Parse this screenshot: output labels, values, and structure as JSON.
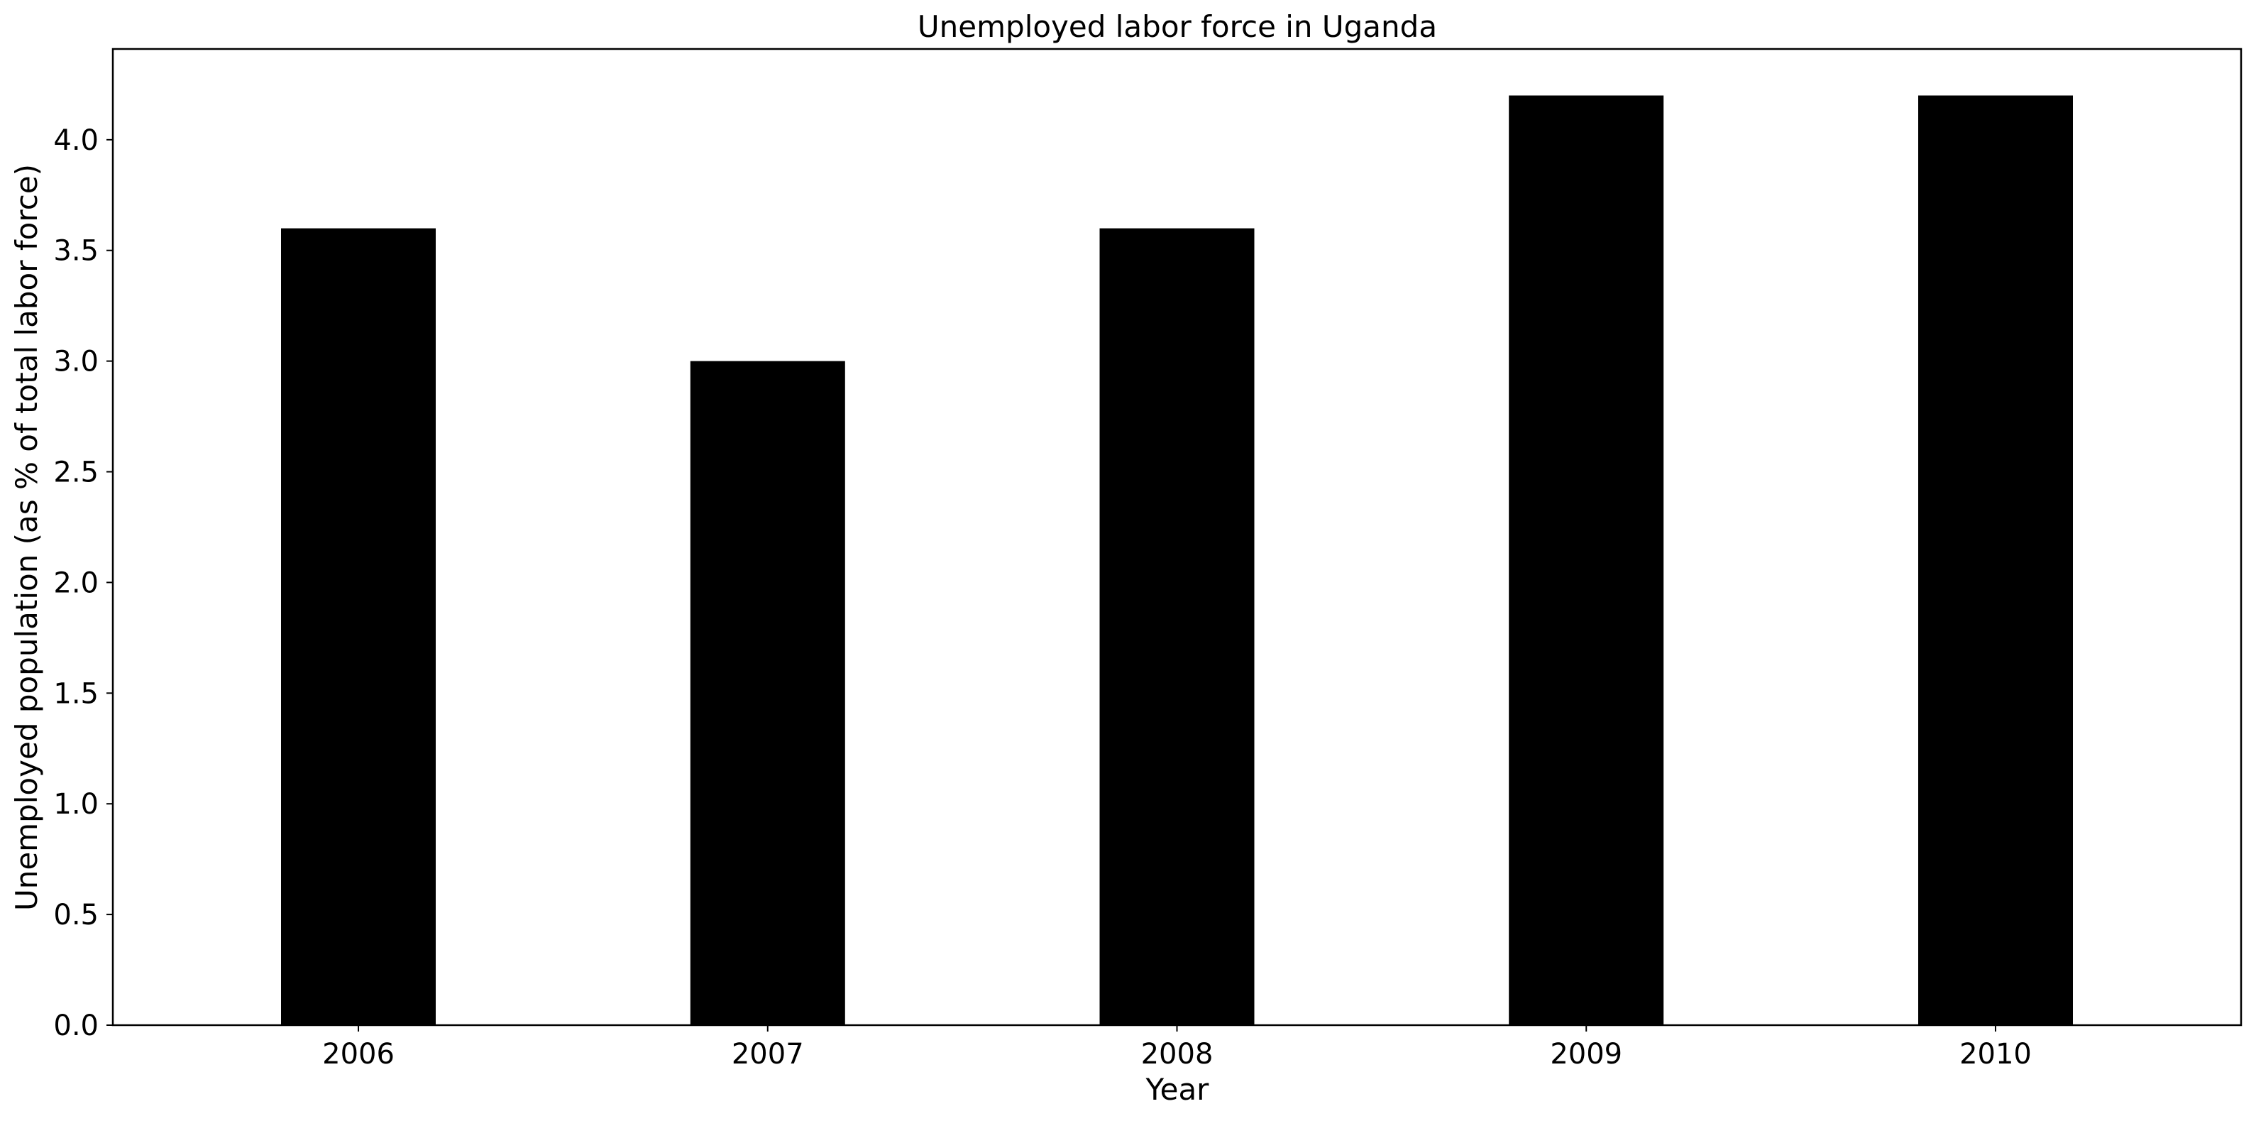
{
  "chart_data": {
    "type": "bar",
    "title": "Unemployed labor force in Uganda",
    "xlabel": "Year",
    "ylabel": "Unemployed population (as % of total labor force)",
    "categories": [
      "2006",
      "2007",
      "2008",
      "2009",
      "2010"
    ],
    "values": [
      3.6,
      3.0,
      3.6,
      4.2,
      4.2
    ],
    "ylim": [
      0,
      4.41
    ],
    "yticks": [
      0.0,
      0.5,
      1.0,
      1.5,
      2.0,
      2.5,
      3.0,
      3.5,
      4.0
    ],
    "ytick_labels": [
      "0.0",
      "0.5",
      "1.0",
      "1.5",
      "2.0",
      "2.5",
      "3.0",
      "3.5",
      "4.0"
    ],
    "grid": false,
    "legend": "none",
    "bar_color": "#000000"
  }
}
